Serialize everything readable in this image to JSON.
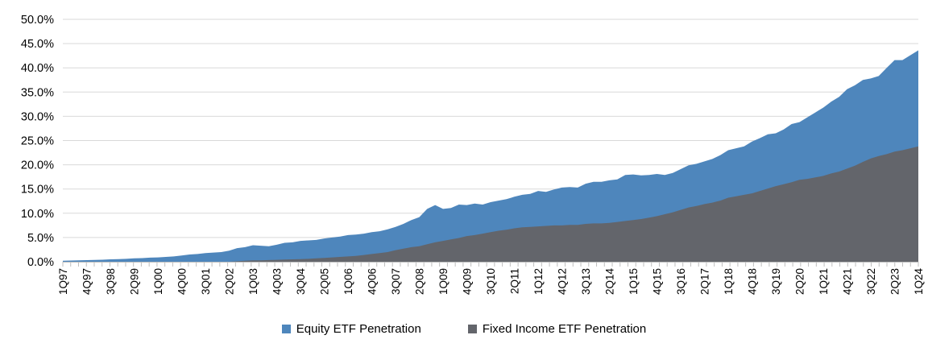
{
  "chart_data": {
    "type": "area",
    "title": "",
    "categories": [
      "1Q97",
      "2Q97",
      "3Q97",
      "4Q97",
      "1Q98",
      "2Q98",
      "3Q98",
      "4Q98",
      "1Q99",
      "2Q99",
      "3Q99",
      "4Q99",
      "1Q00",
      "2Q00",
      "3Q00",
      "4Q00",
      "1Q01",
      "2Q01",
      "3Q01",
      "4Q01",
      "1Q02",
      "2Q02",
      "3Q02",
      "4Q02",
      "1Q03",
      "2Q03",
      "3Q03",
      "4Q03",
      "1Q04",
      "2Q04",
      "3Q04",
      "4Q04",
      "1Q05",
      "2Q05",
      "3Q05",
      "4Q05",
      "1Q06",
      "2Q06",
      "3Q06",
      "4Q06",
      "1Q07",
      "2Q07",
      "3Q07",
      "4Q07",
      "1Q08",
      "2Q08",
      "3Q08",
      "4Q08",
      "1Q09",
      "2Q09",
      "3Q09",
      "4Q09",
      "1Q10",
      "2Q10",
      "3Q10",
      "4Q10",
      "1Q11",
      "2Q11",
      "3Q11",
      "4Q11",
      "1Q12",
      "2Q12",
      "3Q12",
      "4Q12",
      "1Q13",
      "2Q13",
      "3Q13",
      "4Q13",
      "1Q14",
      "2Q14",
      "3Q14",
      "4Q14",
      "1Q15",
      "2Q15",
      "3Q15",
      "4Q15",
      "1Q16",
      "2Q16",
      "3Q16",
      "4Q16",
      "1Q17",
      "2Q17",
      "3Q17",
      "4Q17",
      "1Q18",
      "2Q18",
      "3Q18",
      "4Q18",
      "1Q19",
      "2Q19",
      "3Q19",
      "4Q19",
      "1Q20",
      "2Q20",
      "3Q20",
      "4Q20",
      "1Q21",
      "2Q21",
      "3Q21",
      "4Q21",
      "1Q22",
      "2Q22",
      "3Q22",
      "4Q22",
      "1Q23",
      "2Q23",
      "3Q23",
      "4Q23",
      "1Q24"
    ],
    "series": [
      {
        "name": "Equity ETF Penetration",
        "color": "#4E86BC",
        "values": [
          0.2,
          0.25,
          0.3,
          0.33,
          0.38,
          0.42,
          0.5,
          0.55,
          0.6,
          0.7,
          0.75,
          0.85,
          0.9,
          1.0,
          1.1,
          1.3,
          1.5,
          1.6,
          1.8,
          1.9,
          2.0,
          2.3,
          2.8,
          3.0,
          3.4,
          3.3,
          3.2,
          3.5,
          3.9,
          4.0,
          4.3,
          4.4,
          4.5,
          4.8,
          5.0,
          5.2,
          5.5,
          5.6,
          5.8,
          6.1,
          6.3,
          6.7,
          7.2,
          7.8,
          8.6,
          9.2,
          10.9,
          11.7,
          10.9,
          11.1,
          11.8,
          11.7,
          12.0,
          11.8,
          12.3,
          12.6,
          12.9,
          13.4,
          13.8,
          14.0,
          14.6,
          14.4,
          14.9,
          15.3,
          15.4,
          15.3,
          16.1,
          16.5,
          16.5,
          16.8,
          17.0,
          17.9,
          18.0,
          17.8,
          17.9,
          18.1,
          17.9,
          18.3,
          19.1,
          19.9,
          20.2,
          20.7,
          21.2,
          22.0,
          23.0,
          23.4,
          23.8,
          24.8,
          25.5,
          26.3,
          26.5,
          27.3,
          28.4,
          28.8,
          29.8,
          30.8,
          31.8,
          33.0,
          34.0,
          35.6,
          36.4,
          37.5,
          37.8,
          38.3,
          40.0,
          41.6,
          41.6,
          42.6,
          43.6
        ]
      },
      {
        "name": "Fixed Income ETF Penetration",
        "color": "#63656B",
        "values": [
          0,
          0,
          0,
          0,
          0,
          0,
          0,
          0,
          0,
          0,
          0,
          0,
          0,
          0,
          0,
          0,
          0,
          0,
          0,
          0,
          0,
          0,
          0.1,
          0.2,
          0.3,
          0.3,
          0.35,
          0.4,
          0.45,
          0.5,
          0.55,
          0.6,
          0.7,
          0.8,
          0.9,
          1.0,
          1.1,
          1.2,
          1.4,
          1.6,
          1.8,
          2.0,
          2.4,
          2.7,
          3.0,
          3.2,
          3.6,
          4.0,
          4.3,
          4.6,
          4.9,
          5.3,
          5.5,
          5.8,
          6.1,
          6.4,
          6.6,
          6.9,
          7.1,
          7.2,
          7.3,
          7.4,
          7.5,
          7.5,
          7.6,
          7.6,
          7.8,
          7.9,
          7.9,
          8.0,
          8.2,
          8.4,
          8.6,
          8.8,
          9.1,
          9.4,
          9.8,
          10.2,
          10.7,
          11.2,
          11.5,
          11.9,
          12.2,
          12.6,
          13.2,
          13.5,
          13.8,
          14.1,
          14.6,
          15.1,
          15.6,
          16.0,
          16.4,
          16.9,
          17.1,
          17.4,
          17.7,
          18.2,
          18.6,
          19.2,
          19.8,
          20.6,
          21.3,
          21.8,
          22.2,
          22.7,
          23.0,
          23.4,
          23.8
        ]
      }
    ],
    "y_axis": {
      "min": 0,
      "max": 50,
      "step": 5,
      "tick_labels": [
        "0.0%",
        "5.0%",
        "10.0%",
        "15.0%",
        "20.0%",
        "25.0%",
        "30.0%",
        "35.0%",
        "40.0%",
        "45.0%",
        "50.0%"
      ]
    },
    "x_axis": {
      "label_every": 3,
      "visible_tick_labels": [
        "1Q97",
        "4Q97",
        "3Q98",
        "2Q99",
        "1Q00",
        "4Q00",
        "3Q01",
        "2Q02",
        "1Q03",
        "4Q03",
        "3Q04",
        "2Q05",
        "1Q06",
        "4Q06",
        "3Q07",
        "2Q08",
        "1Q09",
        "4Q09",
        "3Q10",
        "2Q11",
        "1Q12",
        "4Q12",
        "3Q13",
        "2Q14",
        "1Q15",
        "4Q15",
        "3Q16",
        "2Q17",
        "1Q18",
        "4Q18",
        "3Q19",
        "2Q20",
        "1Q21",
        "4Q21",
        "3Q22",
        "2Q23",
        "1Q24"
      ]
    },
    "legend_position": "bottom",
    "grid": "horizontal",
    "overlap_mode": "overlapping-not-stacked",
    "colors": {
      "gridline": "#D9D9D9",
      "axis": "#BFBFBF",
      "text": "#000000",
      "background": "#FFFFFF"
    }
  }
}
